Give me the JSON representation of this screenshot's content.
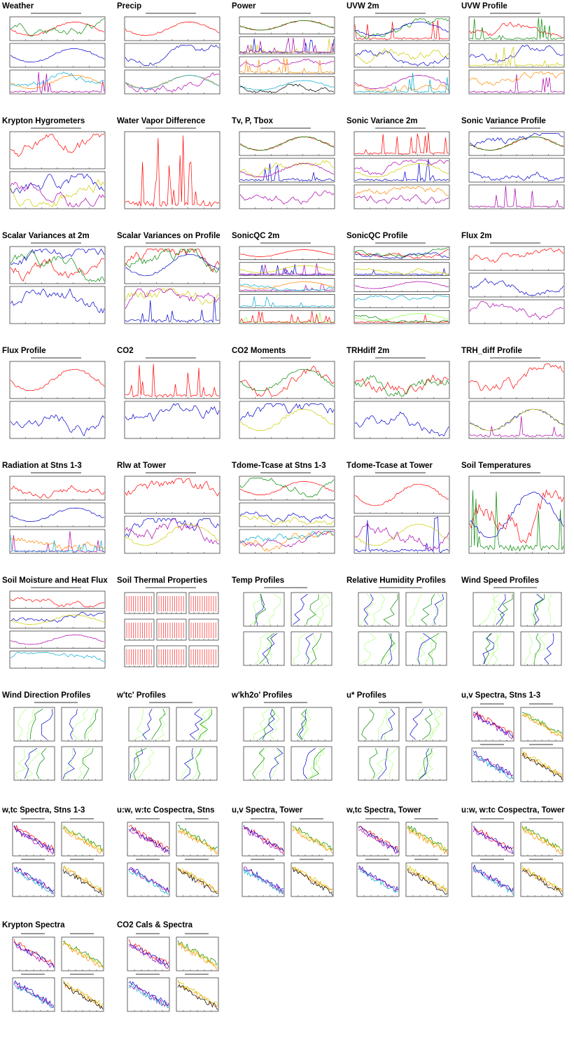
{
  "page": {
    "background": "#ffffff"
  },
  "colors": [
    "#ff0000",
    "#008800",
    "#0000cc",
    "#cccc00",
    "#aa00aa",
    "#ff8800",
    "#00aacc",
    "#000000",
    "#88ff44"
  ],
  "thumbnails": [
    {
      "title": "Weather",
      "kind": "timeseries",
      "panels": 3
    },
    {
      "title": "Precip",
      "kind": "timeseries",
      "panels": 3
    },
    {
      "title": "Power",
      "kind": "timeseries",
      "panels": 4
    },
    {
      "title": "UVW 2m",
      "kind": "timeseries",
      "panels": 3
    },
    {
      "title": "UVW Profile",
      "kind": "timeseries",
      "panels": 3
    },
    {
      "title": "Krypton Hygrometers",
      "kind": "timeseries",
      "panels": 2
    },
    {
      "title": "Water Vapor Difference",
      "kind": "timeseries",
      "panels": 1
    },
    {
      "title": "Tv, P, Tbox",
      "kind": "timeseries",
      "panels": 3
    },
    {
      "title": "Sonic Variance 2m",
      "kind": "timeseries",
      "panels": 3
    },
    {
      "title": "Sonic Variance Profile",
      "kind": "timeseries",
      "panels": 3
    },
    {
      "title": "Scalar Variances at 2m",
      "kind": "timeseries",
      "panels": 2
    },
    {
      "title": "Scalar Variances on Profile",
      "kind": "timeseries",
      "panels": 2
    },
    {
      "title": "SonicQC 2m",
      "kind": "timeseries",
      "panels": 5
    },
    {
      "title": "SonicQC Profile",
      "kind": "timeseries",
      "panels": 5
    },
    {
      "title": "Flux 2m",
      "kind": "timeseries",
      "panels": 3
    },
    {
      "title": "Flux Profile",
      "kind": "timeseries",
      "panels": 2
    },
    {
      "title": "CO2",
      "kind": "timeseries",
      "panels": 2
    },
    {
      "title": "CO2 Moments",
      "kind": "timeseries",
      "panels": 2
    },
    {
      "title": "TRHdiff 2m",
      "kind": "timeseries",
      "panels": 2
    },
    {
      "title": "TRH_diff Profile",
      "kind": "timeseries",
      "panels": 2
    },
    {
      "title": "Radiation at Stns 1-3",
      "kind": "timeseries",
      "panels": 3
    },
    {
      "title": "Rlw at Tower",
      "kind": "timeseries",
      "panels": 2
    },
    {
      "title": "Tdome-Tcase at Stns 1-3",
      "kind": "timeseries",
      "panels": 3
    },
    {
      "title": "Tdome-Tcase at Tower",
      "kind": "timeseries",
      "panels": 2
    },
    {
      "title": "Soil Temperatures",
      "kind": "timeseries",
      "panels": 1
    },
    {
      "title": "Soil Moisture and Heat Flux",
      "kind": "timeseries",
      "panels": 4
    },
    {
      "title": "Soil Thermal Properties",
      "kind": "grid3",
      "panels": 3
    },
    {
      "title": "Temp Profiles",
      "kind": "profiles",
      "panels": 4
    },
    {
      "title": "Relative Humidity Profiles",
      "kind": "profiles",
      "panels": 4
    },
    {
      "title": "Wind Speed Profiles",
      "kind": "profiles",
      "panels": 4
    },
    {
      "title": "Wind Direction Profiles",
      "kind": "profiles",
      "panels": 4
    },
    {
      "title": "w'tc' Profiles",
      "kind": "profiles",
      "panels": 4
    },
    {
      "title": "w'kh2o' Profiles",
      "kind": "profiles",
      "panels": 4
    },
    {
      "title": "u* Profiles",
      "kind": "profiles",
      "panels": 4
    },
    {
      "title": "u,v Spectra, Stns 1-3",
      "kind": "spectra",
      "panels": 4
    },
    {
      "title": "w,tc Spectra, Stns 1-3",
      "kind": "spectra",
      "panels": 4
    },
    {
      "title": "u:w, w:tc Cospectra, Stns",
      "kind": "spectra",
      "panels": 4
    },
    {
      "title": "u,v Spectra, Tower",
      "kind": "spectra",
      "panels": 4
    },
    {
      "title": "w,tc Spectra, Tower",
      "kind": "spectra",
      "panels": 4
    },
    {
      "title": "u:w, w:tc Cospectra, Tower",
      "kind": "spectra",
      "panels": 4
    },
    {
      "title": "Krypton Spectra",
      "kind": "spectra",
      "panels": 4
    },
    {
      "title": "CO2 Cals & Spectra",
      "kind": "spectra",
      "panels": 4
    }
  ]
}
